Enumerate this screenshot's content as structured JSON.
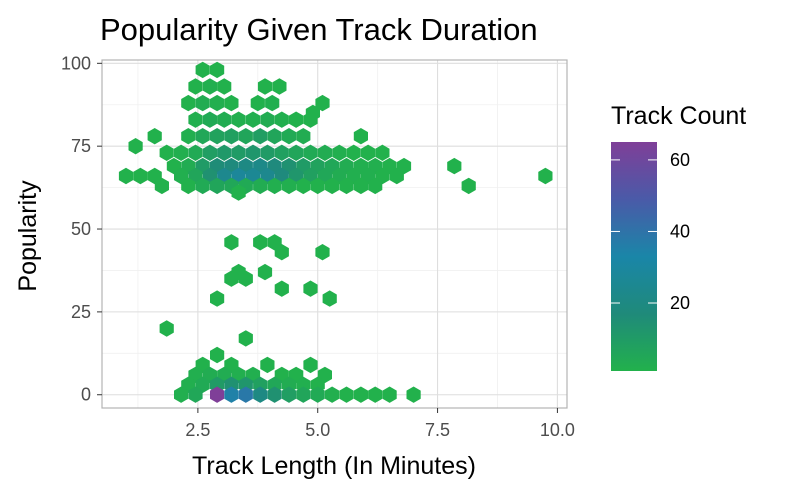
{
  "chart_data": {
    "type": "heatmap",
    "subtype": "hexbin",
    "title": "Popularity Given Track Duration",
    "xlabel": "Track Length (In Minutes)",
    "ylabel": "Popularity",
    "xlim": [
      0.5,
      10.2
    ],
    "ylim": [
      -4,
      101
    ],
    "x_ticks": [
      {
        "value": 2.5,
        "label": "2.5"
      },
      {
        "value": 5.0,
        "label": "5.0"
      },
      {
        "value": 7.5,
        "label": "7.5"
      },
      {
        "value": 10.0,
        "label": "10.0"
      }
    ],
    "y_ticks": [
      {
        "value": 0,
        "label": "0"
      },
      {
        "value": 25,
        "label": "25"
      },
      {
        "value": 50,
        "label": "50"
      },
      {
        "value": 75,
        "label": "75"
      },
      {
        "value": 100,
        "label": "100"
      }
    ],
    "grid": true,
    "legend": {
      "title": "Track Count",
      "placement": "right",
      "min": 1,
      "max": 65,
      "ticks": [
        20,
        40,
        60
      ],
      "colors": [
        "#22b14c",
        "#1f8a7a",
        "#1a86a8",
        "#4a5aa8",
        "#7f3f98"
      ]
    },
    "bins": [
      {
        "x": 2.6,
        "y": 98,
        "count": 1
      },
      {
        "x": 2.9,
        "y": 98,
        "count": 1
      },
      {
        "x": 2.45,
        "y": 93,
        "count": 1
      },
      {
        "x": 2.75,
        "y": 93,
        "count": 2
      },
      {
        "x": 3.05,
        "y": 93,
        "count": 1
      },
      {
        "x": 3.9,
        "y": 93,
        "count": 1
      },
      {
        "x": 4.2,
        "y": 93,
        "count": 1
      },
      {
        "x": 2.3,
        "y": 88,
        "count": 1
      },
      {
        "x": 2.6,
        "y": 88,
        "count": 3
      },
      {
        "x": 2.9,
        "y": 88,
        "count": 2
      },
      {
        "x": 3.2,
        "y": 88,
        "count": 1
      },
      {
        "x": 3.75,
        "y": 88,
        "count": 1
      },
      {
        "x": 4.05,
        "y": 88,
        "count": 2
      },
      {
        "x": 2.45,
        "y": 83,
        "count": 2
      },
      {
        "x": 2.75,
        "y": 83,
        "count": 4
      },
      {
        "x": 3.05,
        "y": 83,
        "count": 3
      },
      {
        "x": 3.35,
        "y": 83,
        "count": 2
      },
      {
        "x": 3.65,
        "y": 83,
        "count": 2
      },
      {
        "x": 3.95,
        "y": 83,
        "count": 3
      },
      {
        "x": 4.25,
        "y": 83,
        "count": 2
      },
      {
        "x": 4.55,
        "y": 83,
        "count": 1
      },
      {
        "x": 4.85,
        "y": 83,
        "count": 1
      },
      {
        "x": 5.1,
        "y": 88,
        "count": 1
      },
      {
        "x": 4.9,
        "y": 85,
        "count": 1
      },
      {
        "x": 2.3,
        "y": 78,
        "count": 2
      },
      {
        "x": 2.6,
        "y": 78,
        "count": 5
      },
      {
        "x": 2.9,
        "y": 78,
        "count": 7
      },
      {
        "x": 3.2,
        "y": 78,
        "count": 8
      },
      {
        "x": 3.5,
        "y": 78,
        "count": 6
      },
      {
        "x": 3.8,
        "y": 78,
        "count": 9
      },
      {
        "x": 4.1,
        "y": 78,
        "count": 6
      },
      {
        "x": 4.4,
        "y": 78,
        "count": 4
      },
      {
        "x": 4.7,
        "y": 78,
        "count": 3
      },
      {
        "x": 1.6,
        "y": 78,
        "count": 1
      },
      {
        "x": 5.9,
        "y": 78,
        "count": 1
      },
      {
        "x": 1.2,
        "y": 75,
        "count": 1
      },
      {
        "x": 2.15,
        "y": 73,
        "count": 2
      },
      {
        "x": 2.45,
        "y": 73,
        "count": 4
      },
      {
        "x": 2.75,
        "y": 73,
        "count": 9
      },
      {
        "x": 3.05,
        "y": 73,
        "count": 11
      },
      {
        "x": 3.35,
        "y": 73,
        "count": 10
      },
      {
        "x": 3.65,
        "y": 73,
        "count": 12
      },
      {
        "x": 3.95,
        "y": 73,
        "count": 10
      },
      {
        "x": 4.25,
        "y": 73,
        "count": 8
      },
      {
        "x": 4.55,
        "y": 73,
        "count": 6
      },
      {
        "x": 4.85,
        "y": 73,
        "count": 4
      },
      {
        "x": 5.15,
        "y": 73,
        "count": 3
      },
      {
        "x": 5.45,
        "y": 73,
        "count": 2
      },
      {
        "x": 5.75,
        "y": 73,
        "count": 1
      },
      {
        "x": 6.05,
        "y": 73,
        "count": 1
      },
      {
        "x": 6.35,
        "y": 73,
        "count": 1
      },
      {
        "x": 1.85,
        "y": 73,
        "count": 1
      },
      {
        "x": 2.0,
        "y": 69,
        "count": 1
      },
      {
        "x": 2.3,
        "y": 69,
        "count": 3
      },
      {
        "x": 2.6,
        "y": 69,
        "count": 10
      },
      {
        "x": 2.9,
        "y": 69,
        "count": 16
      },
      {
        "x": 3.2,
        "y": 69,
        "count": 18
      },
      {
        "x": 3.5,
        "y": 69,
        "count": 20
      },
      {
        "x": 3.8,
        "y": 69,
        "count": 22
      },
      {
        "x": 4.1,
        "y": 69,
        "count": 18
      },
      {
        "x": 4.4,
        "y": 69,
        "count": 14
      },
      {
        "x": 4.7,
        "y": 69,
        "count": 10
      },
      {
        "x": 5.0,
        "y": 69,
        "count": 7
      },
      {
        "x": 5.3,
        "y": 69,
        "count": 5
      },
      {
        "x": 5.6,
        "y": 69,
        "count": 3
      },
      {
        "x": 5.9,
        "y": 69,
        "count": 2
      },
      {
        "x": 6.2,
        "y": 69,
        "count": 2
      },
      {
        "x": 6.5,
        "y": 69,
        "count": 1
      },
      {
        "x": 6.8,
        "y": 69,
        "count": 1
      },
      {
        "x": 7.85,
        "y": 69,
        "count": 1
      },
      {
        "x": 1.0,
        "y": 66,
        "count": 1
      },
      {
        "x": 1.3,
        "y": 66,
        "count": 1
      },
      {
        "x": 1.6,
        "y": 66,
        "count": 1
      },
      {
        "x": 2.15,
        "y": 66,
        "count": 2
      },
      {
        "x": 2.45,
        "y": 66,
        "count": 6
      },
      {
        "x": 2.75,
        "y": 66,
        "count": 14
      },
      {
        "x": 3.05,
        "y": 66,
        "count": 24
      },
      {
        "x": 3.35,
        "y": 66,
        "count": 28
      },
      {
        "x": 3.65,
        "y": 66,
        "count": 26
      },
      {
        "x": 3.95,
        "y": 66,
        "count": 24
      },
      {
        "x": 4.25,
        "y": 66,
        "count": 18
      },
      {
        "x": 4.55,
        "y": 66,
        "count": 12
      },
      {
        "x": 4.85,
        "y": 66,
        "count": 8
      },
      {
        "x": 5.15,
        "y": 66,
        "count": 5
      },
      {
        "x": 5.45,
        "y": 66,
        "count": 3
      },
      {
        "x": 5.75,
        "y": 66,
        "count": 2
      },
      {
        "x": 6.05,
        "y": 66,
        "count": 2
      },
      {
        "x": 6.35,
        "y": 66,
        "count": 1
      },
      {
        "x": 6.65,
        "y": 66,
        "count": 1
      },
      {
        "x": 9.75,
        "y": 66,
        "count": 1
      },
      {
        "x": 1.75,
        "y": 63,
        "count": 1
      },
      {
        "x": 2.3,
        "y": 63,
        "count": 1
      },
      {
        "x": 2.6,
        "y": 63,
        "count": 4
      },
      {
        "x": 2.9,
        "y": 63,
        "count": 6
      },
      {
        "x": 3.2,
        "y": 63,
        "count": 5
      },
      {
        "x": 3.5,
        "y": 63,
        "count": 4
      },
      {
        "x": 3.8,
        "y": 63,
        "count": 3
      },
      {
        "x": 4.1,
        "y": 63,
        "count": 2
      },
      {
        "x": 4.4,
        "y": 63,
        "count": 2
      },
      {
        "x": 4.7,
        "y": 63,
        "count": 1
      },
      {
        "x": 5.0,
        "y": 63,
        "count": 1
      },
      {
        "x": 5.3,
        "y": 63,
        "count": 1
      },
      {
        "x": 5.6,
        "y": 63,
        "count": 1
      },
      {
        "x": 5.9,
        "y": 63,
        "count": 1
      },
      {
        "x": 6.2,
        "y": 63,
        "count": 1
      },
      {
        "x": 8.15,
        "y": 63,
        "count": 1
      },
      {
        "x": 3.35,
        "y": 61,
        "count": 1
      },
      {
        "x": 3.2,
        "y": 46,
        "count": 1
      },
      {
        "x": 3.8,
        "y": 46,
        "count": 1
      },
      {
        "x": 4.1,
        "y": 46,
        "count": 1
      },
      {
        "x": 4.25,
        "y": 43,
        "count": 1
      },
      {
        "x": 5.1,
        "y": 43,
        "count": 1
      },
      {
        "x": 3.35,
        "y": 37,
        "count": 1
      },
      {
        "x": 3.9,
        "y": 37,
        "count": 1
      },
      {
        "x": 3.2,
        "y": 35,
        "count": 1
      },
      {
        "x": 3.5,
        "y": 35,
        "count": 1
      },
      {
        "x": 4.25,
        "y": 32,
        "count": 1
      },
      {
        "x": 4.85,
        "y": 32,
        "count": 1
      },
      {
        "x": 2.9,
        "y": 29,
        "count": 1
      },
      {
        "x": 5.25,
        "y": 29,
        "count": 1
      },
      {
        "x": 1.85,
        "y": 20,
        "count": 1
      },
      {
        "x": 3.5,
        "y": 17,
        "count": 1
      },
      {
        "x": 2.9,
        "y": 12,
        "count": 1
      },
      {
        "x": 2.6,
        "y": 9,
        "count": 1
      },
      {
        "x": 3.2,
        "y": 9,
        "count": 1
      },
      {
        "x": 3.95,
        "y": 9,
        "count": 1
      },
      {
        "x": 4.85,
        "y": 9,
        "count": 1
      },
      {
        "x": 2.45,
        "y": 6,
        "count": 2
      },
      {
        "x": 2.75,
        "y": 6,
        "count": 3
      },
      {
        "x": 3.05,
        "y": 6,
        "count": 3
      },
      {
        "x": 3.35,
        "y": 6,
        "count": 2
      },
      {
        "x": 3.65,
        "y": 6,
        "count": 2
      },
      {
        "x": 4.25,
        "y": 6,
        "count": 1
      },
      {
        "x": 4.55,
        "y": 6,
        "count": 1
      },
      {
        "x": 5.15,
        "y": 6,
        "count": 1
      },
      {
        "x": 2.3,
        "y": 3,
        "count": 2
      },
      {
        "x": 2.6,
        "y": 3,
        "count": 4
      },
      {
        "x": 2.9,
        "y": 3,
        "count": 10
      },
      {
        "x": 3.2,
        "y": 3,
        "count": 14
      },
      {
        "x": 3.5,
        "y": 3,
        "count": 12
      },
      {
        "x": 3.8,
        "y": 3,
        "count": 8
      },
      {
        "x": 4.1,
        "y": 3,
        "count": 5
      },
      {
        "x": 4.4,
        "y": 3,
        "count": 3
      },
      {
        "x": 4.7,
        "y": 3,
        "count": 2
      },
      {
        "x": 5.0,
        "y": 3,
        "count": 1
      },
      {
        "x": 2.15,
        "y": 0,
        "count": 2
      },
      {
        "x": 2.45,
        "y": 0,
        "count": 5
      },
      {
        "x": 2.9,
        "y": 0,
        "count": 65
      },
      {
        "x": 3.2,
        "y": 0,
        "count": 35
      },
      {
        "x": 3.5,
        "y": 0,
        "count": 38
      },
      {
        "x": 3.8,
        "y": 0,
        "count": 20
      },
      {
        "x": 4.1,
        "y": 0,
        "count": 14
      },
      {
        "x": 4.4,
        "y": 0,
        "count": 9
      },
      {
        "x": 4.7,
        "y": 0,
        "count": 6
      },
      {
        "x": 5.0,
        "y": 0,
        "count": 4
      },
      {
        "x": 5.3,
        "y": 0,
        "count": 2
      },
      {
        "x": 5.6,
        "y": 0,
        "count": 1
      },
      {
        "x": 5.9,
        "y": 0,
        "count": 1
      },
      {
        "x": 6.2,
        "y": 0,
        "count": 1
      },
      {
        "x": 6.5,
        "y": 0,
        "count": 1
      },
      {
        "x": 7.0,
        "y": 0,
        "count": 1
      }
    ]
  }
}
